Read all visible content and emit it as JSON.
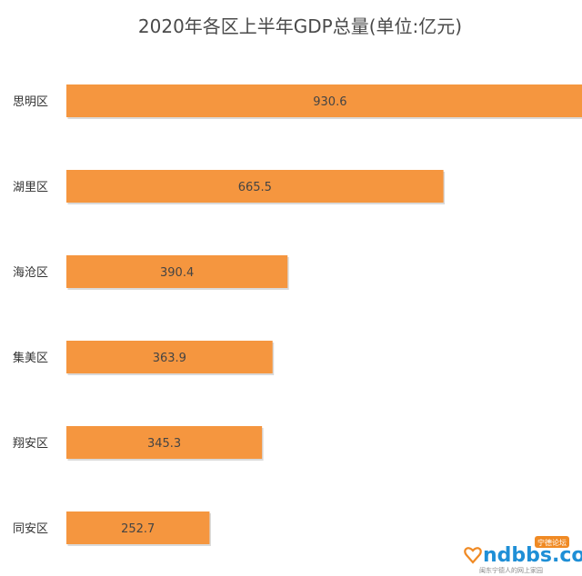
{
  "chart_data": {
    "type": "bar",
    "orientation": "horizontal",
    "title": "2020年各区上半年GDP总量(单位:亿元)",
    "categories": [
      "思明区",
      "湖里区",
      "海沧区",
      "集美区",
      "翔安区",
      "同安区"
    ],
    "values": [
      930.6,
      665.5,
      390.4,
      363.9,
      345.3,
      252.7
    ],
    "value_labels": [
      "930.6",
      "665.5",
      "390.4",
      "363.9",
      "345.3",
      "252.7"
    ],
    "xlabel": "",
    "ylabel": "",
    "xlim": [
      0,
      1000
    ],
    "grid": false,
    "legend": "none",
    "colors": {
      "bar": "#F5963F",
      "bar_shadow": "#d9d9d9"
    }
  },
  "watermark": {
    "logo_text": "ndbbs.com",
    "badge_text": "宁德论坛",
    "tagline": "闽东宁德人的网上家园"
  }
}
